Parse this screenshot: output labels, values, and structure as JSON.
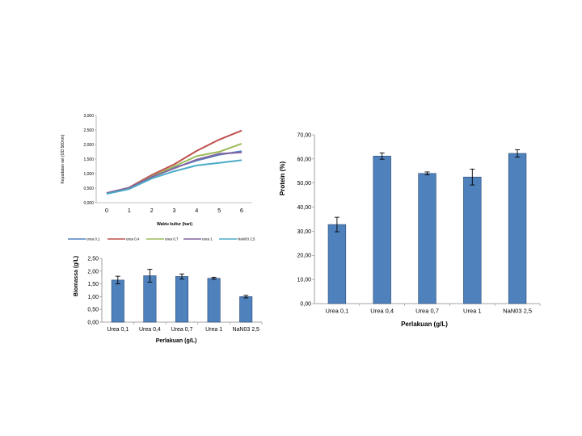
{
  "chart_data": [
    {
      "type": "line",
      "title": "",
      "xlabel": "Waktu kultur (hari)",
      "ylabel": "Kepadatan sel (OD 560nm)",
      "x": [
        0,
        1,
        2,
        3,
        4,
        5,
        6
      ],
      "x_tick_labels": [
        "0",
        "1",
        "2",
        "3",
        "4",
        "5",
        "6"
      ],
      "ylim": [
        0,
        3
      ],
      "y_tick_labels": [
        "0,000",
        "0,500",
        "1,000",
        "1,500",
        "2,000",
        "2,500",
        "3,000"
      ],
      "grid": false,
      "legend_position": "bottom",
      "series": [
        {
          "name": "urea 0,1",
          "color": "#4f81bd",
          "values": [
            0.32,
            0.5,
            0.9,
            1.2,
            1.45,
            1.65,
            1.77
          ]
        },
        {
          "name": "urea 0,4",
          "color": "#c0504d",
          "values": [
            0.33,
            0.52,
            0.95,
            1.32,
            1.78,
            2.17,
            2.48
          ]
        },
        {
          "name": "urea 0,7",
          "color": "#9bbb59",
          "values": [
            0.33,
            0.5,
            0.9,
            1.25,
            1.6,
            1.75,
            2.03
          ]
        },
        {
          "name": "urea 1",
          "color": "#8064a2",
          "values": [
            0.33,
            0.51,
            0.88,
            1.18,
            1.48,
            1.68,
            1.73
          ]
        },
        {
          "name": "NaN03 2,5",
          "color": "#4bacc6",
          "values": [
            0.3,
            0.47,
            0.83,
            1.08,
            1.28,
            1.37,
            1.46
          ]
        }
      ]
    },
    {
      "type": "bar",
      "title": "",
      "categories": [
        "Urea 0,1",
        "Urea 0,4",
        "Urea 0,7",
        "Urea 1",
        "NaN03 2,5"
      ],
      "values": [
        1.65,
        1.82,
        1.79,
        1.72,
        1.0
      ],
      "errors": [
        0.15,
        0.25,
        0.1,
        0.04,
        0.05
      ],
      "xlabel": "Perlakuan (g/L)",
      "ylabel": "Biomassa (g/L)",
      "ylim": [
        0,
        2.5
      ],
      "y_tick_labels": [
        "0,00",
        "0,50",
        "1,00",
        "1,50",
        "2,00",
        "2,50"
      ],
      "grid": false,
      "bar_color": "#4f81bd"
    },
    {
      "type": "bar",
      "title": "",
      "categories": [
        "Urea 0,1",
        "Urea 0,4",
        "Urea 0,7",
        "Urea 1",
        "NaN03 2,5"
      ],
      "values": [
        32.8,
        61.2,
        54.0,
        52.5,
        62.3
      ],
      "errors": [
        3.0,
        1.3,
        0.6,
        3.3,
        1.5
      ],
      "xlabel": "Perlakuan (g/L)",
      "ylabel": "Protein (%)",
      "ylim": [
        0,
        70
      ],
      "y_tick_labels": [
        "0,00",
        "10,00",
        "20,00",
        "30,00",
        "40,00",
        "50,00",
        "60,00",
        "70,00"
      ],
      "grid": false,
      "bar_color": "#4f81bd"
    }
  ]
}
